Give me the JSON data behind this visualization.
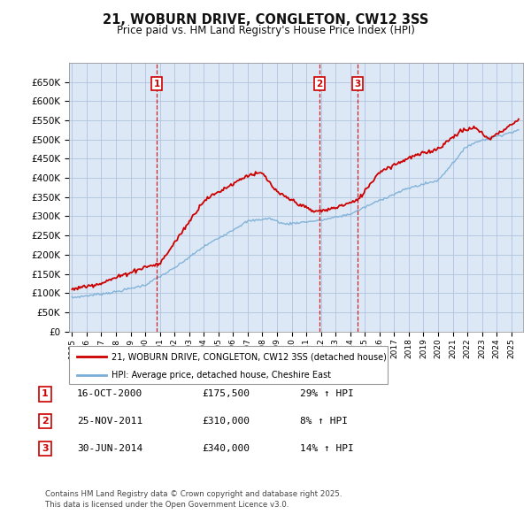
{
  "title": "21, WOBURN DRIVE, CONGLETON, CW12 3SS",
  "subtitle": "Price paid vs. HM Land Registry's House Price Index (HPI)",
  "legend_red": "21, WOBURN DRIVE, CONGLETON, CW12 3SS (detached house)",
  "legend_blue": "HPI: Average price, detached house, Cheshire East",
  "footer": "Contains HM Land Registry data © Crown copyright and database right 2025.\nThis data is licensed under the Open Government Licence v3.0.",
  "transactions": [
    {
      "num": 1,
      "date": "16-OCT-2000",
      "price": "£175,500",
      "hpi": "29% ↑ HPI",
      "year": 2000.79
    },
    {
      "num": 2,
      "date": "25-NOV-2011",
      "price": "£310,000",
      "hpi": "8% ↑ HPI",
      "year": 2011.9
    },
    {
      "num": 3,
      "date": "30-JUN-2014",
      "price": "£340,000",
      "hpi": "14% ↑ HPI",
      "year": 2014.5
    }
  ],
  "ylim": [
    0,
    700000
  ],
  "yticks": [
    0,
    50000,
    100000,
    150000,
    200000,
    250000,
    300000,
    350000,
    400000,
    450000,
    500000,
    550000,
    600000,
    650000
  ],
  "background_color": "#ffffff",
  "plot_bg_color": "#dce8f5",
  "grid_color": "#b0c4de",
  "red_color": "#cc0000",
  "blue_color": "#7aaed6"
}
